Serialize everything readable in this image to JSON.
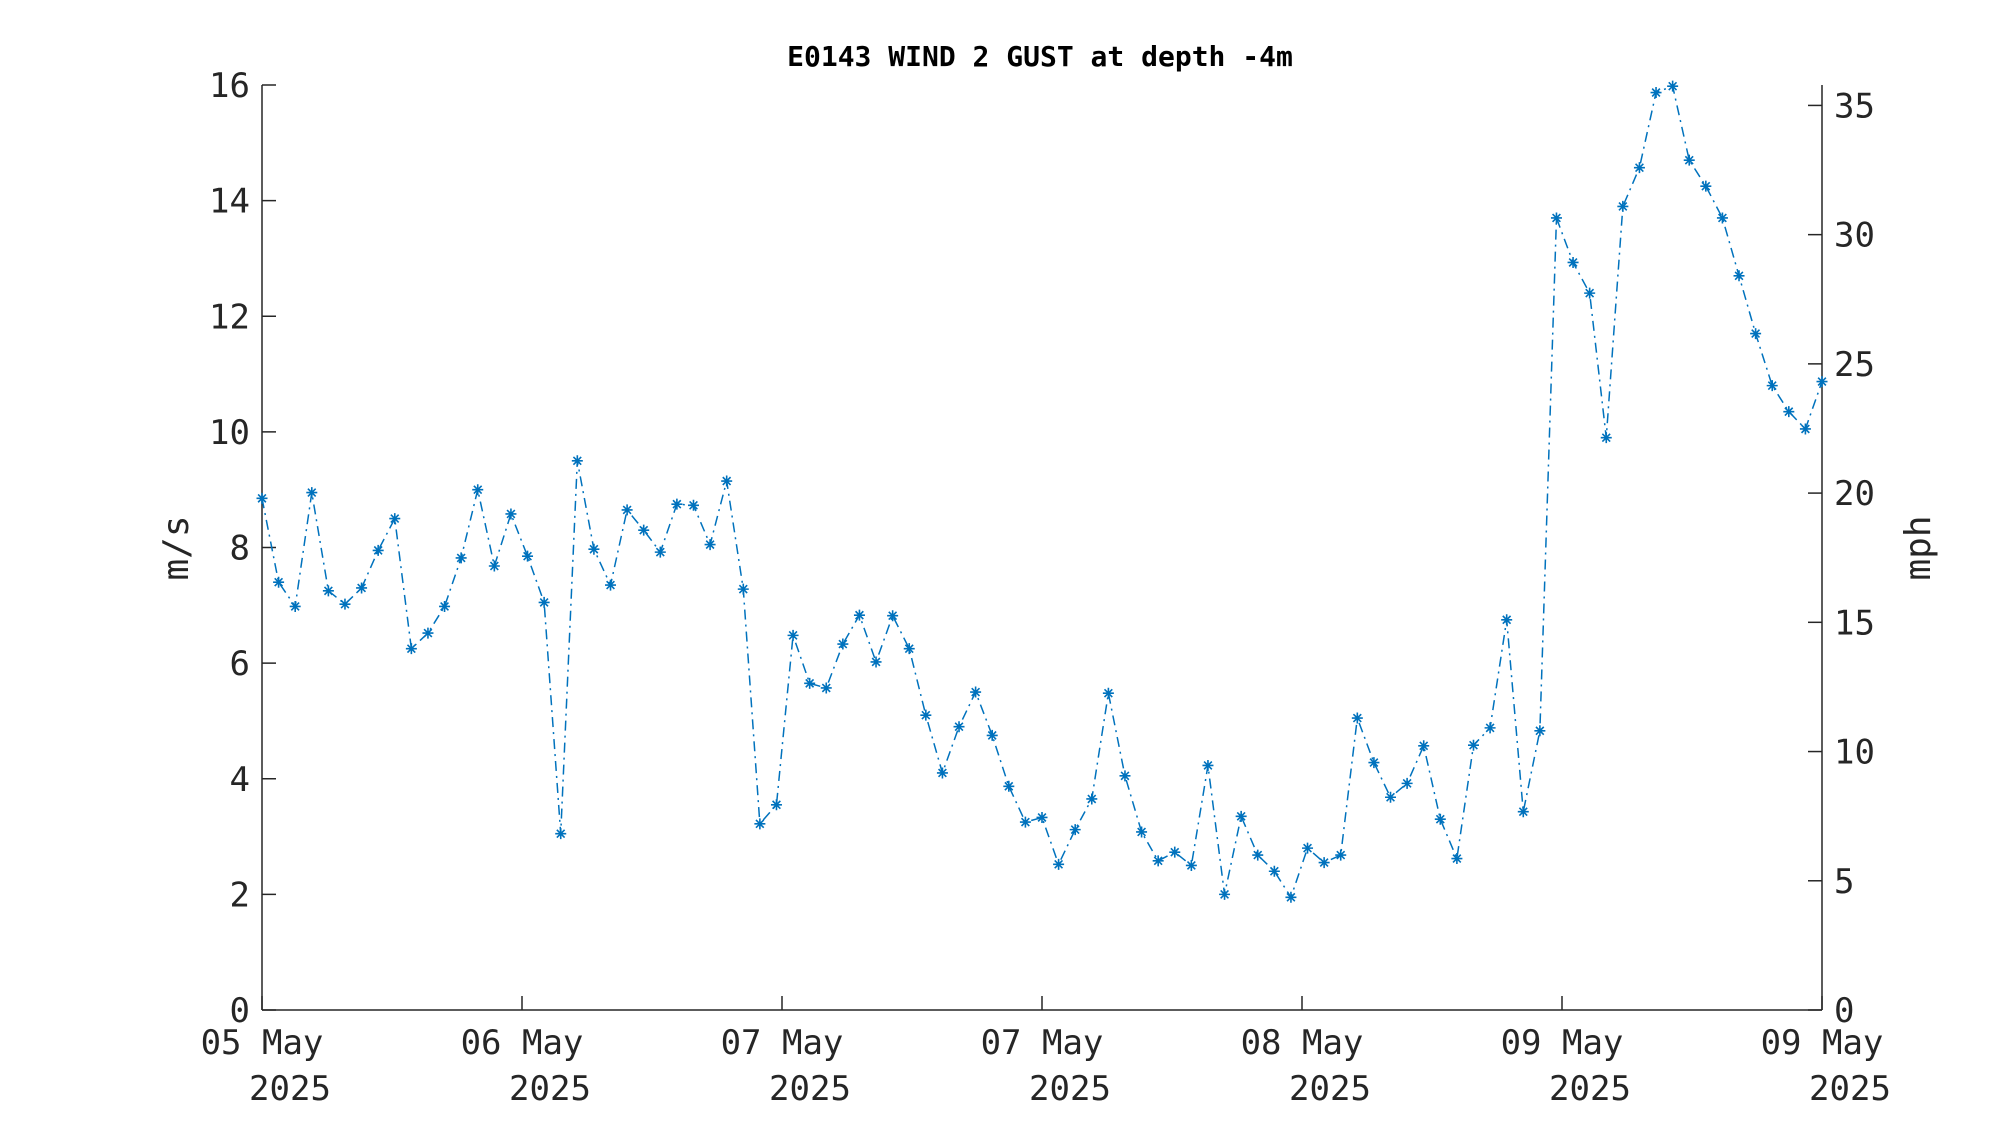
{
  "chart_data": {
    "type": "line",
    "title": "E0143 WIND 2 GUST at depth -4m",
    "ylabel": "m/s",
    "y2label": "mph",
    "ylim": [
      0,
      16
    ],
    "y2lim": [
      0,
      35.79
    ],
    "y_ticks": [
      "0",
      "2",
      "4",
      "6",
      "8",
      "10",
      "12",
      "14",
      "16"
    ],
    "y2_ticks": [
      "0",
      "5",
      "10",
      "15",
      "20",
      "25",
      "30",
      "35"
    ],
    "x_ticks": [
      {
        "line1": "05 May",
        "line2": "2025"
      },
      {
        "line1": "06 May",
        "line2": "2025"
      },
      {
        "line1": "07 May",
        "line2": "2025"
      },
      {
        "line1": "07 May",
        "line2": "2025"
      },
      {
        "line1": "08 May",
        "line2": "2025"
      },
      {
        "line1": "09 May",
        "line2": "2025"
      },
      {
        "line1": "09 May",
        "line2": "2025"
      }
    ],
    "grid": false,
    "line_color": "#0072BD",
    "marker": "asterisk",
    "line_style": "dash-dot",
    "series": [
      {
        "values": [
          8.85,
          7.4,
          6.98,
          8.95,
          7.25,
          7.02,
          7.3,
          7.95,
          8.5,
          6.25,
          6.52,
          6.98,
          7.82,
          9.0,
          7.68,
          8.58,
          7.85,
          7.05,
          3.05,
          9.5,
          7.97,
          7.35,
          8.65,
          8.3,
          7.92,
          8.75,
          8.73,
          8.05,
          9.15,
          7.28,
          3.22,
          3.55,
          6.48,
          5.65,
          5.57,
          6.33,
          6.83,
          6.02,
          6.82,
          6.25,
          5.1,
          4.1,
          4.9,
          5.5,
          4.75,
          3.87,
          3.25,
          3.33,
          2.52,
          3.12,
          3.65,
          5.48,
          4.05,
          3.08,
          2.58,
          2.73,
          2.5,
          4.23,
          2.0,
          3.35,
          2.68,
          2.4,
          1.95,
          2.8,
          2.55,
          2.68,
          5.05,
          4.28,
          3.68,
          3.92,
          4.57,
          3.3,
          2.62,
          4.58,
          4.88,
          6.75,
          3.43,
          4.83,
          13.7,
          12.93,
          12.4,
          9.9,
          13.9,
          14.57,
          15.87,
          15.98,
          14.7,
          14.25,
          13.7,
          12.7,
          11.7,
          10.8,
          10.35,
          10.05,
          10.87
        ]
      }
    ]
  }
}
